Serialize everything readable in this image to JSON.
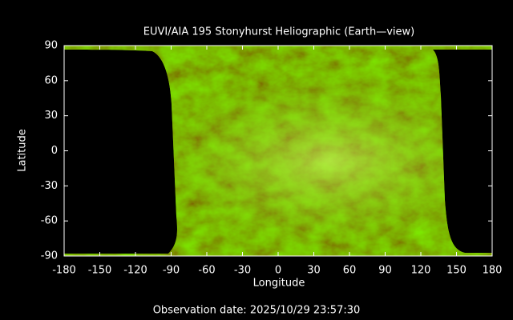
{
  "chart_data": {
    "type": "image",
    "title": "EUVI/AIA 195 Stonyhurst Heliographic (Earth—view)",
    "xlabel": "Longitude",
    "ylabel": "Latitude",
    "xlim": [
      -180,
      180
    ],
    "ylim": [
      -90,
      90
    ],
    "xticks": [
      -180,
      -150,
      -120,
      -90,
      -60,
      -30,
      0,
      30,
      60,
      90,
      120,
      150,
      180
    ],
    "yticks": [
      -90,
      -60,
      -30,
      0,
      30,
      60,
      90
    ],
    "footer": "Observation date: 2025/10/29 23:57:30"
  }
}
